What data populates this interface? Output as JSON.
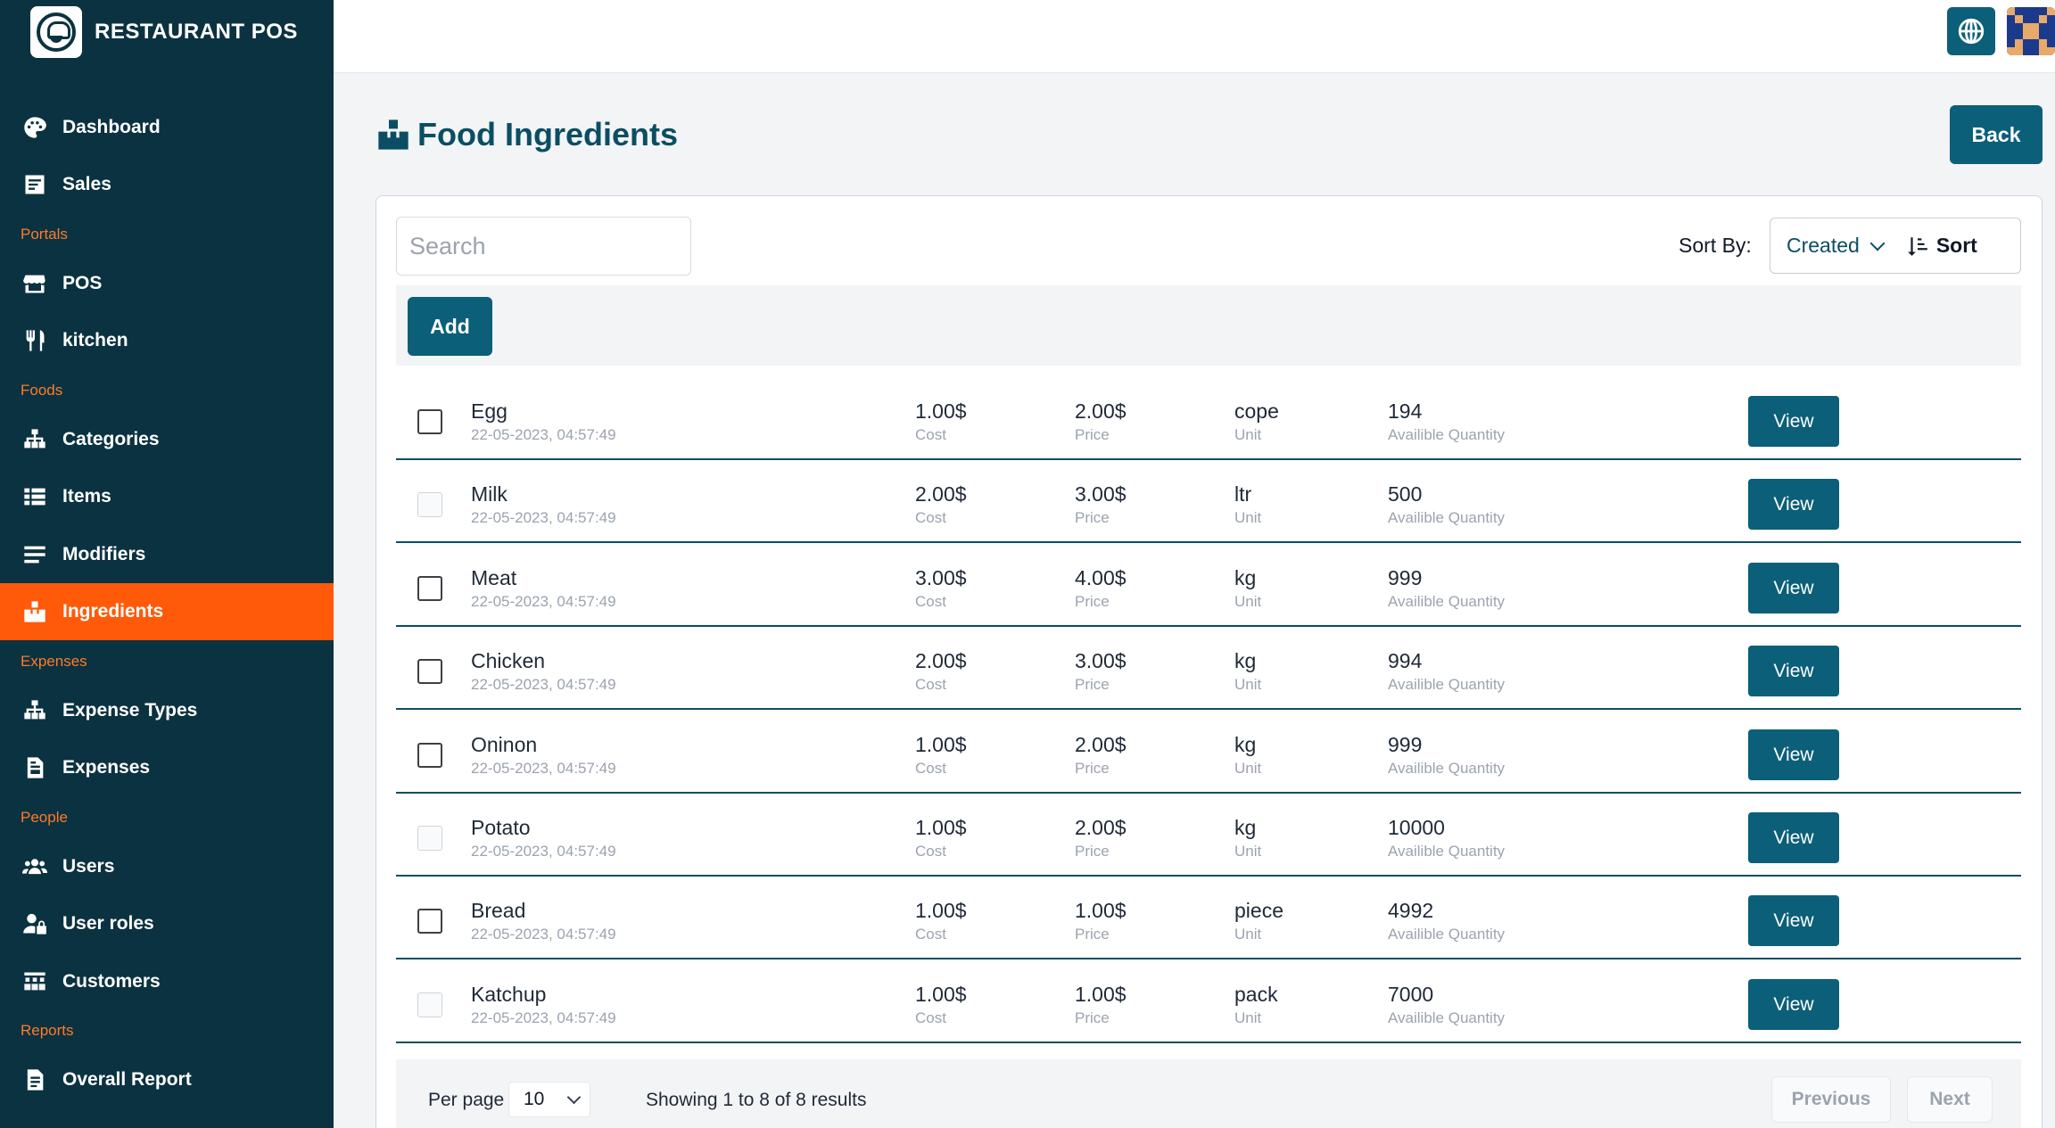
{
  "brand": {
    "name": "RESTAURANT POS"
  },
  "sidebar": {
    "items": [
      {
        "label": "Dashboard",
        "icon": "palette-icon"
      },
      {
        "label": "Sales",
        "icon": "receipt-icon"
      },
      {
        "label": "POS",
        "icon": "store-icon"
      },
      {
        "label": "kitchen",
        "icon": "utensils-icon"
      },
      {
        "label": "Categories",
        "icon": "sitemap-icon"
      },
      {
        "label": "Items",
        "icon": "list-icon"
      },
      {
        "label": "Modifiers",
        "icon": "bars-icon"
      },
      {
        "label": "Ingredients",
        "icon": "cubes-icon",
        "active": true
      },
      {
        "label": "Expense Types",
        "icon": "sitemap-icon"
      },
      {
        "label": "Expenses",
        "icon": "file-invoice-icon"
      },
      {
        "label": "Users",
        "icon": "users-icon"
      },
      {
        "label": "User roles",
        "icon": "user-lock-icon"
      },
      {
        "label": "Customers",
        "icon": "customers-icon"
      },
      {
        "label": "Overall Report",
        "icon": "report-icon"
      }
    ],
    "sections": [
      "Portals",
      "Foods",
      "Expenses",
      "People",
      "Reports"
    ]
  },
  "header": {
    "title": "Food Ingredients",
    "back_label": "Back"
  },
  "search": {
    "placeholder": "Search"
  },
  "sort": {
    "label": "Sort By:",
    "selected": "Created",
    "button": "Sort"
  },
  "toolbar": {
    "add_label": "Add"
  },
  "table": {
    "sub_labels": {
      "cost": "Cost",
      "price": "Price",
      "unit": "Unit",
      "qty": "Availible Quantity"
    },
    "view_label": "View",
    "rows": [
      {
        "name": "Egg",
        "date": "22-05-2023, 04:57:49",
        "cost": "1.00$",
        "price": "2.00$",
        "unit": "cope",
        "qty": "194",
        "checkbox_enabled": true
      },
      {
        "name": "Milk",
        "date": "22-05-2023, 04:57:49",
        "cost": "2.00$",
        "price": "3.00$",
        "unit": "ltr",
        "qty": "500",
        "checkbox_enabled": false
      },
      {
        "name": "Meat",
        "date": "22-05-2023, 04:57:49",
        "cost": "3.00$",
        "price": "4.00$",
        "unit": "kg",
        "qty": "999",
        "checkbox_enabled": true
      },
      {
        "name": "Chicken",
        "date": "22-05-2023, 04:57:49",
        "cost": "2.00$",
        "price": "3.00$",
        "unit": "kg",
        "qty": "994",
        "checkbox_enabled": true
      },
      {
        "name": "Oninon",
        "date": "22-05-2023, 04:57:49",
        "cost": "1.00$",
        "price": "2.00$",
        "unit": "kg",
        "qty": "999",
        "checkbox_enabled": true
      },
      {
        "name": "Potato",
        "date": "22-05-2023, 04:57:49",
        "cost": "1.00$",
        "price": "2.00$",
        "unit": "kg",
        "qty": "10000",
        "checkbox_enabled": false
      },
      {
        "name": "Bread",
        "date": "22-05-2023, 04:57:49",
        "cost": "1.00$",
        "price": "1.00$",
        "unit": "piece",
        "qty": "4992",
        "checkbox_enabled": true
      },
      {
        "name": "Katchup",
        "date": "22-05-2023, 04:57:49",
        "cost": "1.00$",
        "price": "1.00$",
        "unit": "pack",
        "qty": "7000",
        "checkbox_enabled": false
      }
    ]
  },
  "pagination": {
    "per_page_label": "Per page",
    "per_page_value": "10",
    "showing": "Showing 1 to 8 of 8 results",
    "previous": "Previous",
    "next": "Next"
  },
  "colors": {
    "sidebar": "#0b3240",
    "accent": "#ff5a0a",
    "primary": "#0b5f79"
  }
}
